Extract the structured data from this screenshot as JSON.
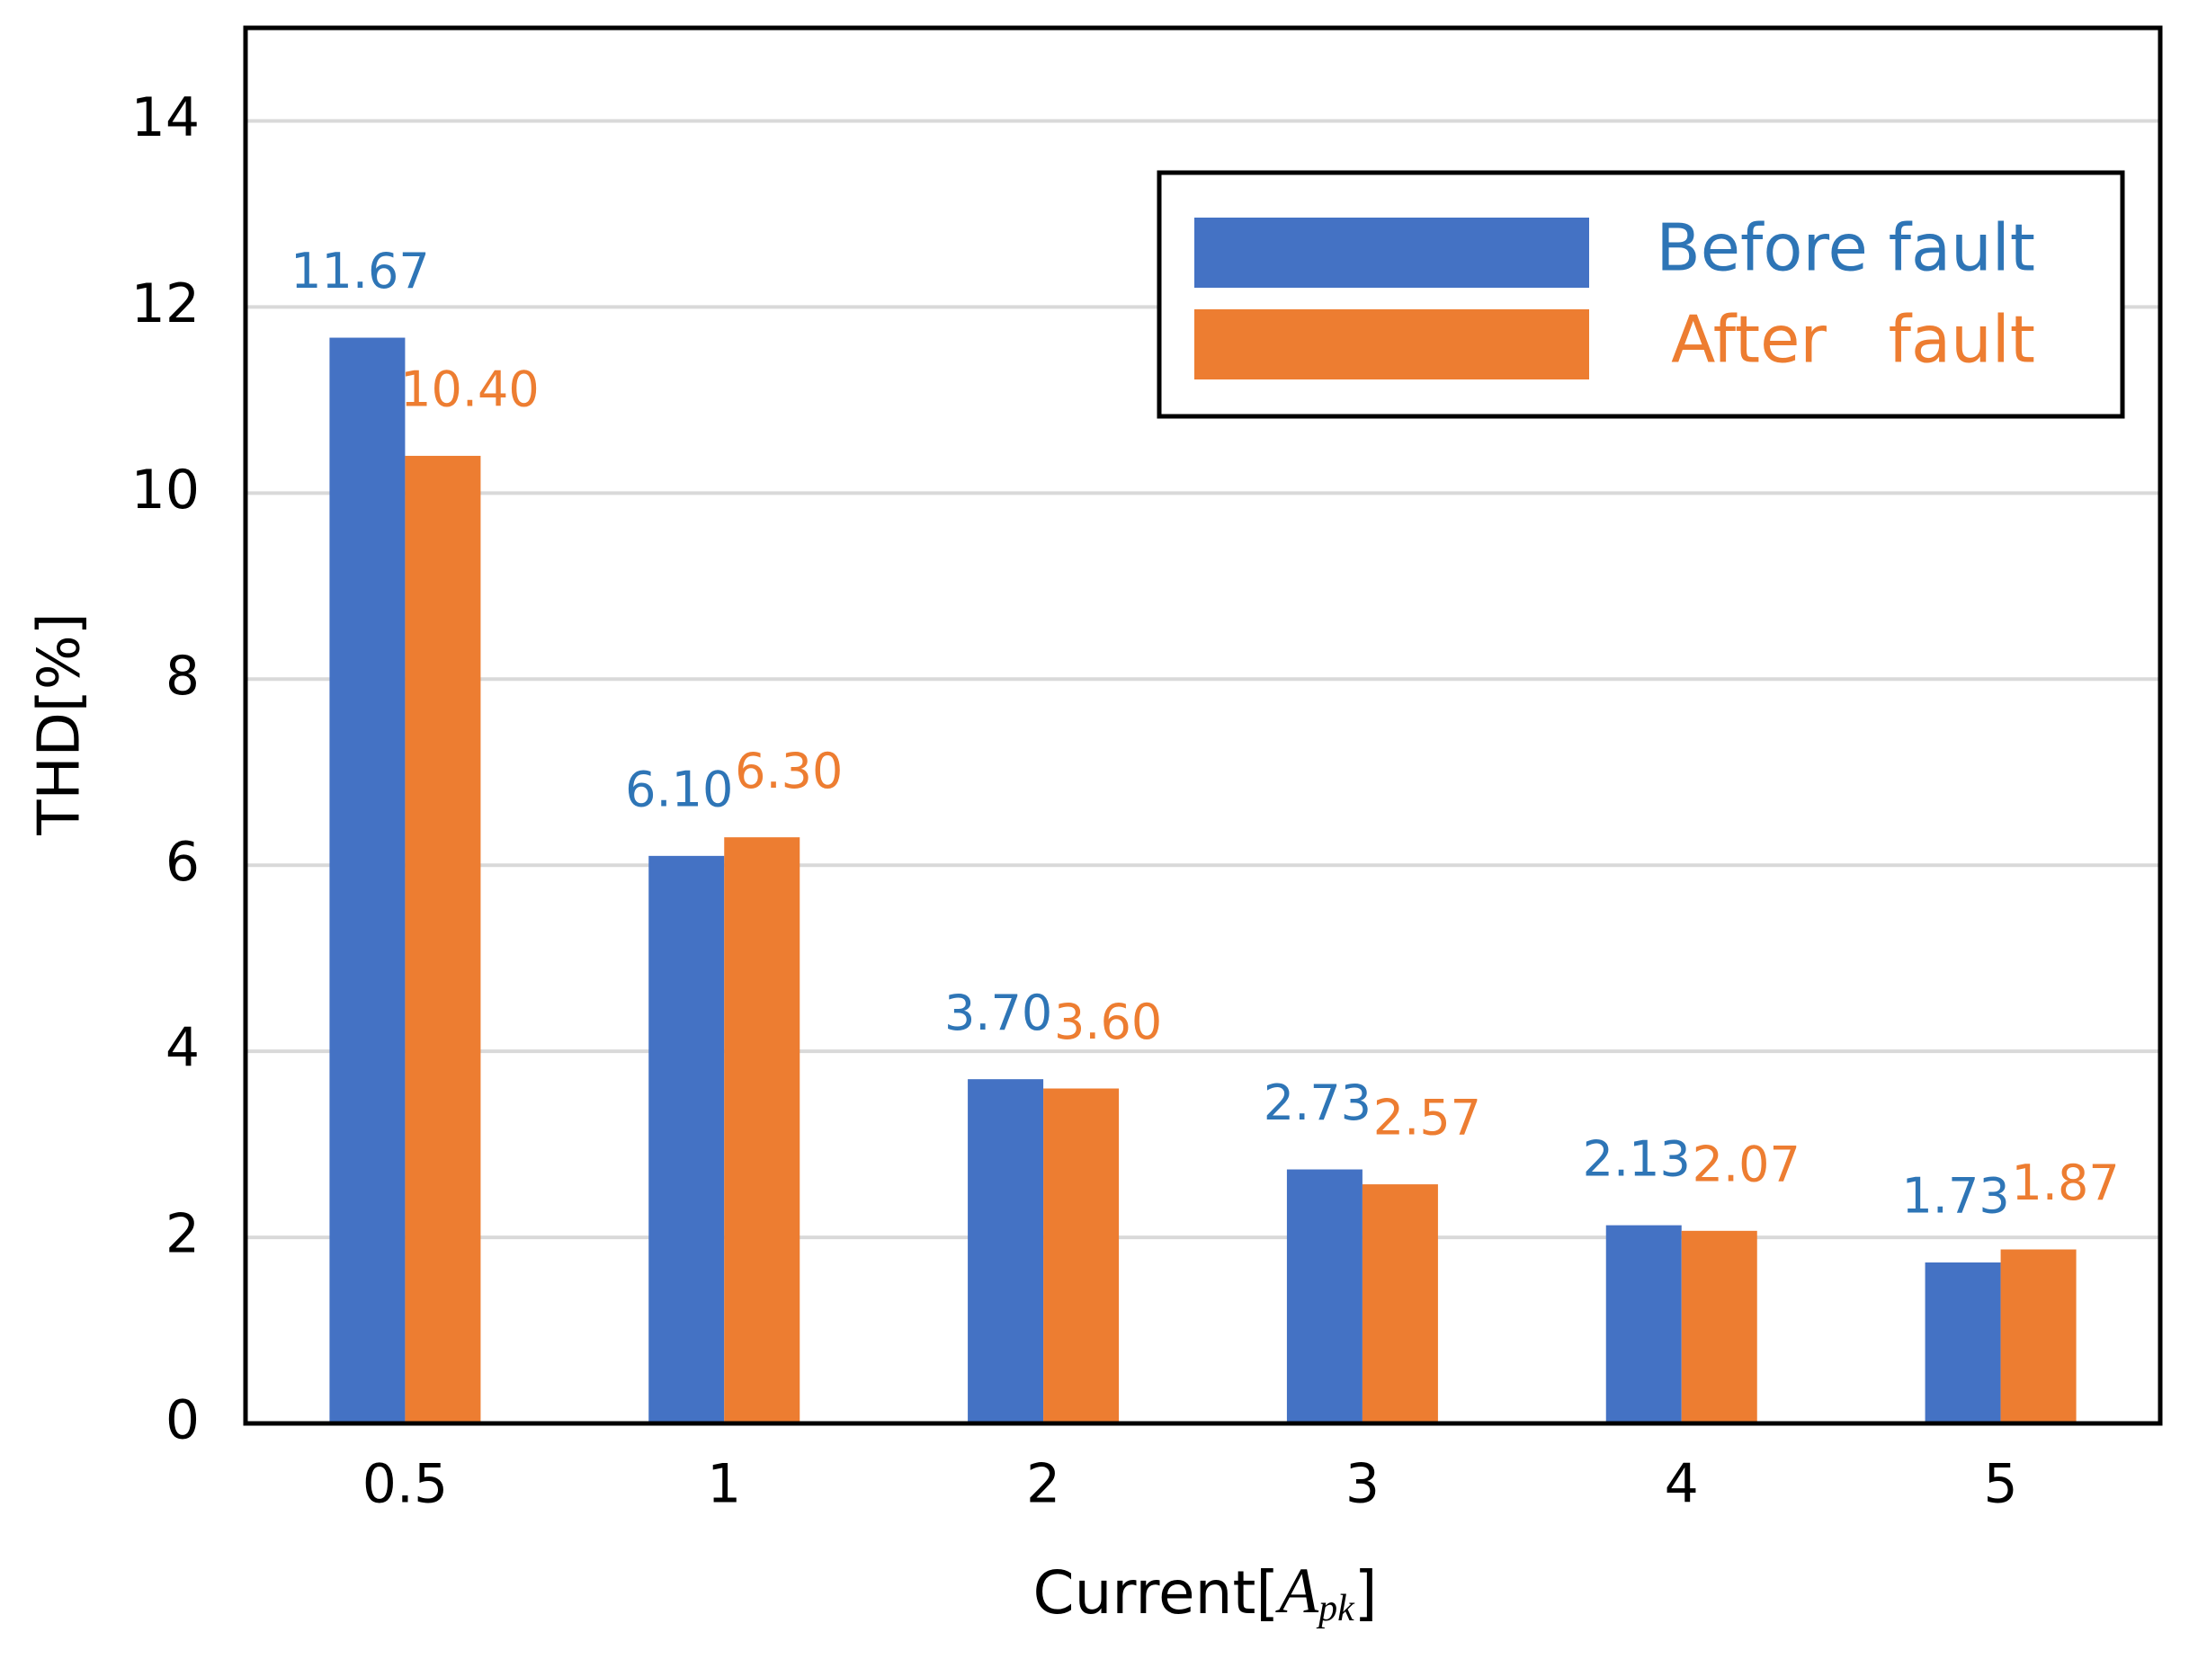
{
  "chart_data": {
    "type": "bar",
    "xlabel": [
      "Current[",
      "A",
      "pk",
      "]"
    ],
    "ylabel": "THD[%]",
    "categories": [
      "0.5",
      "1",
      "2",
      "3",
      "4",
      "5"
    ],
    "series": [
      {
        "name": "Before fault",
        "color": "#4472c4",
        "label_color": "#2e75b6",
        "values": [
          11.67,
          6.1,
          3.7,
          2.73,
          2.13,
          1.73
        ],
        "value_labels": [
          "11.67",
          "6.10",
          "3.70",
          "2.73",
          "2.13",
          "1.73"
        ]
      },
      {
        "name": "After   fault",
        "color": "#ed7d31",
        "label_color": "#ed7d31",
        "values": [
          10.4,
          6.3,
          3.6,
          2.57,
          2.07,
          1.87
        ],
        "value_labels": [
          "10.40",
          "6.30",
          "3.60",
          "2.57",
          "2.07",
          "1.87"
        ]
      }
    ],
    "ylim": [
      0,
      15
    ],
    "yticks": [
      0,
      2,
      4,
      6,
      8,
      10,
      12,
      14
    ],
    "grid": true,
    "legend": "top-right"
  }
}
